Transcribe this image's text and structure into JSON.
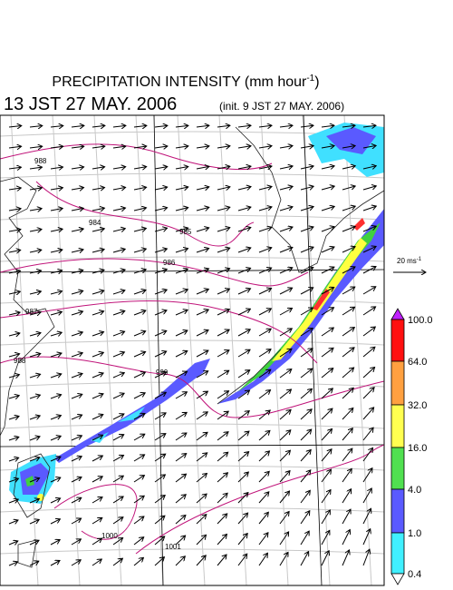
{
  "header": {
    "title": "PRECIPITATION INTENSITY (mm hour",
    "title_sup": "-1",
    "title_end": ")",
    "time": "13 JST 27 MAY. 2006",
    "init": "(init. 9 JST 27 MAY. 2006)"
  },
  "vector_scale": {
    "label": "20 ms",
    "sup": "-1"
  },
  "contour_labels": [
    "988",
    "984",
    "985",
    "986",
    "987",
    "988",
    "999",
    "1000",
    "1001"
  ],
  "colorbar": {
    "labels": [
      "100.0",
      "64.0",
      "32.0",
      "16.0",
      "4.0",
      "1.0",
      "0.4"
    ]
  }
}
